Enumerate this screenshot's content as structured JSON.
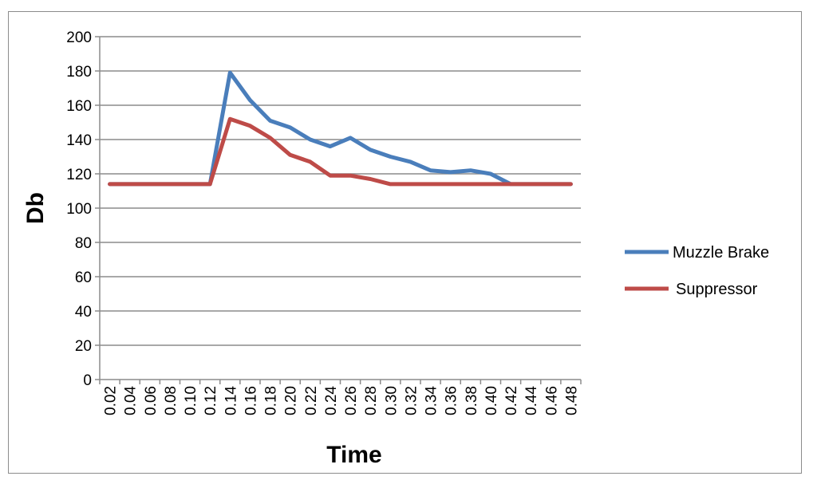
{
  "chart_data": {
    "type": "line",
    "title": "",
    "xlabel": "Time",
    "ylabel": "Db",
    "ylim": [
      0,
      200
    ],
    "yticks": [
      0,
      20,
      40,
      60,
      80,
      100,
      120,
      140,
      160,
      180,
      200
    ],
    "grid": true,
    "legend": "right",
    "categories": [
      "0.02",
      "0.04",
      "0.06",
      "0.08",
      "0.10",
      "0.12",
      "0.14",
      "0.16",
      "0.18",
      "0.20",
      "0.22",
      "0.24",
      "0.26",
      "0.28",
      "0.30",
      "0.32",
      "0.34",
      "0.36",
      "0.38",
      "0.40",
      "0.42",
      "0.44",
      "0.46",
      "0.48"
    ],
    "series": [
      {
        "name": "Muzzle Brake",
        "color": "#4a7ebb",
        "values": [
          114,
          114,
          114,
          114,
          114,
          114,
          179,
          163,
          151,
          147,
          140,
          136,
          141,
          134,
          130,
          127,
          122,
          121,
          122,
          120,
          114,
          114,
          114,
          114
        ]
      },
      {
        "name": "Suppressor",
        "color": "#be4b48",
        "values": [
          114,
          114,
          114,
          114,
          114,
          114,
          152,
          148,
          141,
          131,
          127,
          119,
          119,
          117,
          114,
          114,
          114,
          114,
          114,
          114,
          114,
          114,
          114,
          114
        ]
      }
    ]
  }
}
